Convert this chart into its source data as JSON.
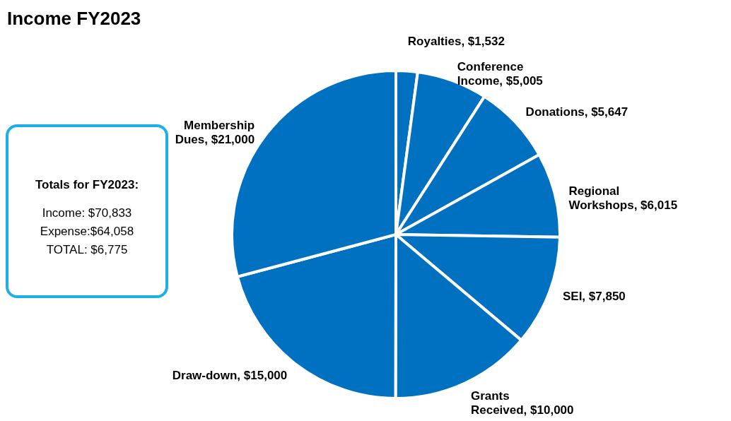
{
  "chart_data": {
    "type": "pie",
    "title": "Income FY2023",
    "categories": [
      "Royalties",
      "Conference Income",
      "Donations",
      "Regional Workshops",
      "SEI",
      "Grants Received",
      "Draw-down",
      "Membership Dues"
    ],
    "values": [
      1532,
      5005,
      5647,
      6015,
      7850,
      10000,
      15000,
      21000
    ],
    "value_labels": [
      "$1,532",
      "$5,005",
      "$5,647",
      "$6,015",
      "$7,850",
      "$10,000",
      "$15,000",
      "$21,000"
    ],
    "colors": [
      "#0070c0",
      "#0070c0",
      "#0070c0",
      "#0070c0",
      "#0070c0",
      "#0070c0",
      "#0070c0",
      "#0070c0"
    ],
    "annotations": [
      "Totals for FY2023:",
      "Income: $70,833",
      "Expense:$64,058",
      "TOTAL:   $6,775"
    ]
  }
}
